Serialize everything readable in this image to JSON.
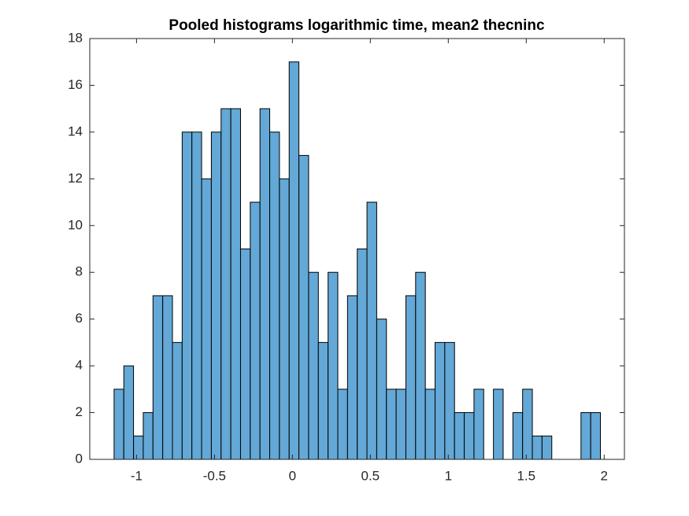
{
  "chart_data": {
    "type": "histogram",
    "title": "Pooled histograms logarithmic time, mean2 thecninc",
    "bins": [
      -1.144,
      -1.0816,
      -1.0192,
      -0.9568,
      -0.8944,
      -0.832,
      -0.7696,
      -0.7072,
      -0.6448,
      -0.5824,
      -0.52,
      -0.4576,
      -0.3952,
      -0.3328,
      -0.2704,
      -0.208,
      -0.1456,
      -0.0832,
      -0.0208,
      0.0416,
      0.104,
      0.1664,
      0.2288,
      0.2912,
      0.3536,
      0.416,
      0.4784,
      0.5408,
      0.6032,
      0.6656,
      0.728,
      0.7904,
      0.8528,
      0.9152,
      0.9776,
      1.04,
      1.1024,
      1.1648,
      1.2272,
      1.2896,
      1.352,
      1.4144,
      1.4768,
      1.5392,
      1.6016,
      1.664,
      1.7264,
      1.7888,
      1.8512,
      1.9136,
      1.976
    ],
    "counts": [
      3,
      4,
      1,
      2,
      7,
      7,
      5,
      14,
      14,
      12,
      14,
      15,
      15,
      9,
      11,
      15,
      14,
      12,
      17,
      13,
      8,
      5,
      8,
      3,
      7,
      9,
      11,
      6,
      3,
      3,
      7,
      8,
      3,
      5,
      5,
      2,
      2,
      3,
      0,
      3,
      0,
      2,
      3,
      1,
      1,
      0,
      0,
      0,
      2,
      2
    ],
    "color": "#63a8d6",
    "edgecolor": "#000000",
    "xlim": [
      -1.3,
      2.13
    ],
    "xticks": [
      -1,
      -0.5,
      0,
      0.5,
      1,
      1.5,
      2
    ],
    "ylim": [
      0,
      18
    ],
    "yticks": [
      0,
      2,
      4,
      6,
      8,
      10,
      12,
      14,
      16,
      18
    ]
  }
}
